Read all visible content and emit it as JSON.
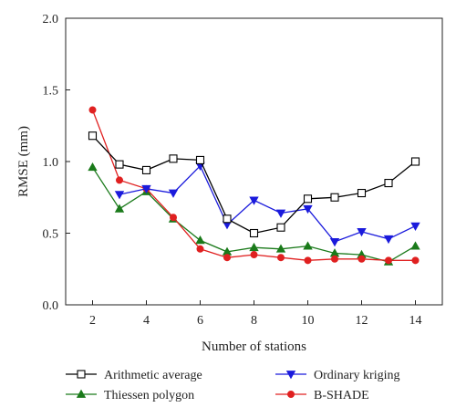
{
  "chart_data": {
    "type": "line",
    "xlabel": "Number of stations",
    "ylabel": "RMSE (mm)",
    "xlim": [
      1,
      15
    ],
    "ylim": [
      0,
      2.0
    ],
    "x_ticks": [
      "2",
      "4",
      "6",
      "8",
      "10",
      "12",
      "14"
    ],
    "y_ticks": [
      "0.0",
      "0.5",
      "1.0",
      "1.5",
      "2.0"
    ],
    "grid": false,
    "legend_position": "bottom",
    "series": [
      {
        "name": "Arithmetic average",
        "color": "#000000",
        "marker": "open-square",
        "x": [
          2,
          3,
          4,
          5,
          6,
          7,
          8,
          9,
          10,
          11,
          12,
          13,
          14
        ],
        "values": [
          1.18,
          0.98,
          0.94,
          1.02,
          1.01,
          0.6,
          0.5,
          0.54,
          0.74,
          0.75,
          0.78,
          0.85,
          1.0
        ]
      },
      {
        "name": "Ordinary kriging",
        "color": "#1a1adc",
        "marker": "down-triangle",
        "x": [
          3,
          4,
          5,
          6,
          7,
          8,
          9,
          10,
          11,
          12,
          13,
          14
        ],
        "values": [
          0.77,
          0.81,
          0.78,
          0.97,
          0.56,
          0.73,
          0.64,
          0.67,
          0.44,
          0.51,
          0.46,
          0.55
        ]
      },
      {
        "name": "Thiessen polygon",
        "color": "#1a7a1a",
        "marker": "up-triangle",
        "x": [
          2,
          3,
          4,
          5,
          6,
          7,
          8,
          9,
          10,
          11,
          12,
          13,
          14
        ],
        "values": [
          0.96,
          0.67,
          0.79,
          0.6,
          0.45,
          0.37,
          0.4,
          0.39,
          0.41,
          0.36,
          0.35,
          0.3,
          0.41
        ]
      },
      {
        "name": "B-SHADE",
        "color": "#e02020",
        "marker": "circle",
        "x": [
          2,
          3,
          4,
          5,
          6,
          7,
          8,
          9,
          10,
          11,
          12,
          13,
          14
        ],
        "values": [
          1.36,
          0.87,
          0.81,
          0.61,
          0.39,
          0.33,
          0.35,
          0.33,
          0.31,
          0.32,
          0.32,
          0.31,
          0.31
        ]
      }
    ]
  }
}
